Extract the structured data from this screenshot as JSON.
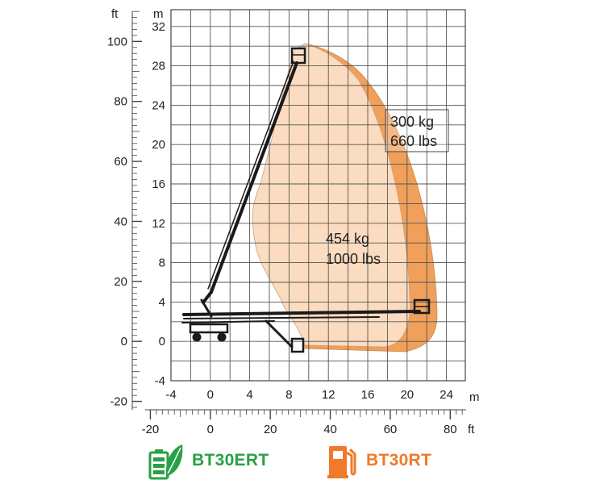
{
  "units": {
    "left_ft": "ft",
    "left_m": "m",
    "bottom_m": "m",
    "bottom_ft": "ft"
  },
  "axes": {
    "y_m_ticks": [
      "32",
      "28",
      "24",
      "20",
      "16",
      "12",
      "8",
      "4",
      "0",
      "-4"
    ],
    "y_ft_ticks": [
      "100",
      "80",
      "60",
      "40",
      "20",
      "0",
      "-20"
    ],
    "x_m_ticks": [
      "-4",
      "0",
      "4",
      "8",
      "12",
      "16",
      "20",
      "24"
    ],
    "x_ft_ticks": [
      "-20",
      "0",
      "20",
      "40",
      "60",
      "80"
    ]
  },
  "capacities": {
    "outer": {
      "line1": "300 kg",
      "line2": "660 lbs",
      "color": "#f0a05a"
    },
    "inner": {
      "line1": "454 kg",
      "line2": "1000 lbs",
      "color": "#fbdcc0"
    }
  },
  "legend": [
    {
      "name": "BT30ERT",
      "icon": "battery-leaf-icon",
      "color": "#2aa046"
    },
    {
      "name": "BT30RT",
      "icon": "fuel-pump-icon",
      "color": "#f07a2a"
    }
  ]
}
